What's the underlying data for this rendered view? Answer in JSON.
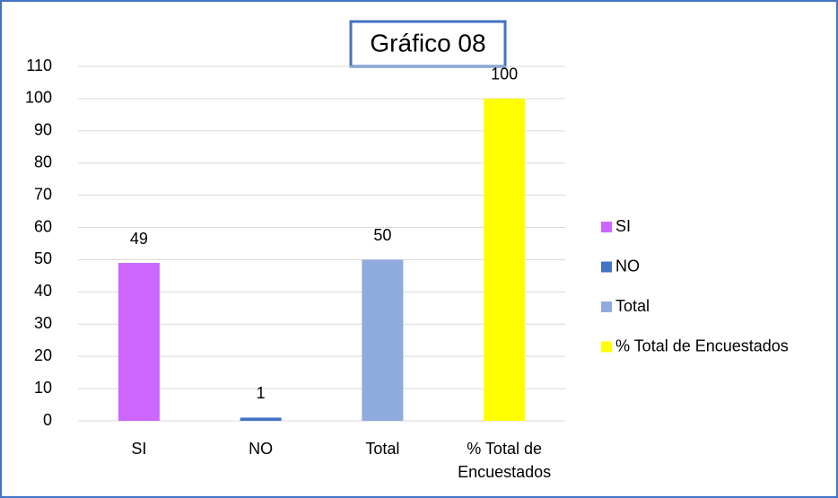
{
  "chart_data": {
    "type": "bar",
    "title": "Gráfico 08",
    "categories": [
      "SI",
      "NO",
      "Total",
      "% Total de Encuestados"
    ],
    "values": [
      49,
      1,
      50,
      100
    ],
    "colors": [
      "#cc66ff",
      "#4472c4",
      "#8faadc",
      "#ffff00"
    ],
    "ylim": [
      0,
      110
    ],
    "yticks": [
      0,
      10,
      20,
      30,
      40,
      50,
      60,
      70,
      80,
      90,
      100,
      110
    ],
    "grid": true,
    "legend": "right"
  }
}
